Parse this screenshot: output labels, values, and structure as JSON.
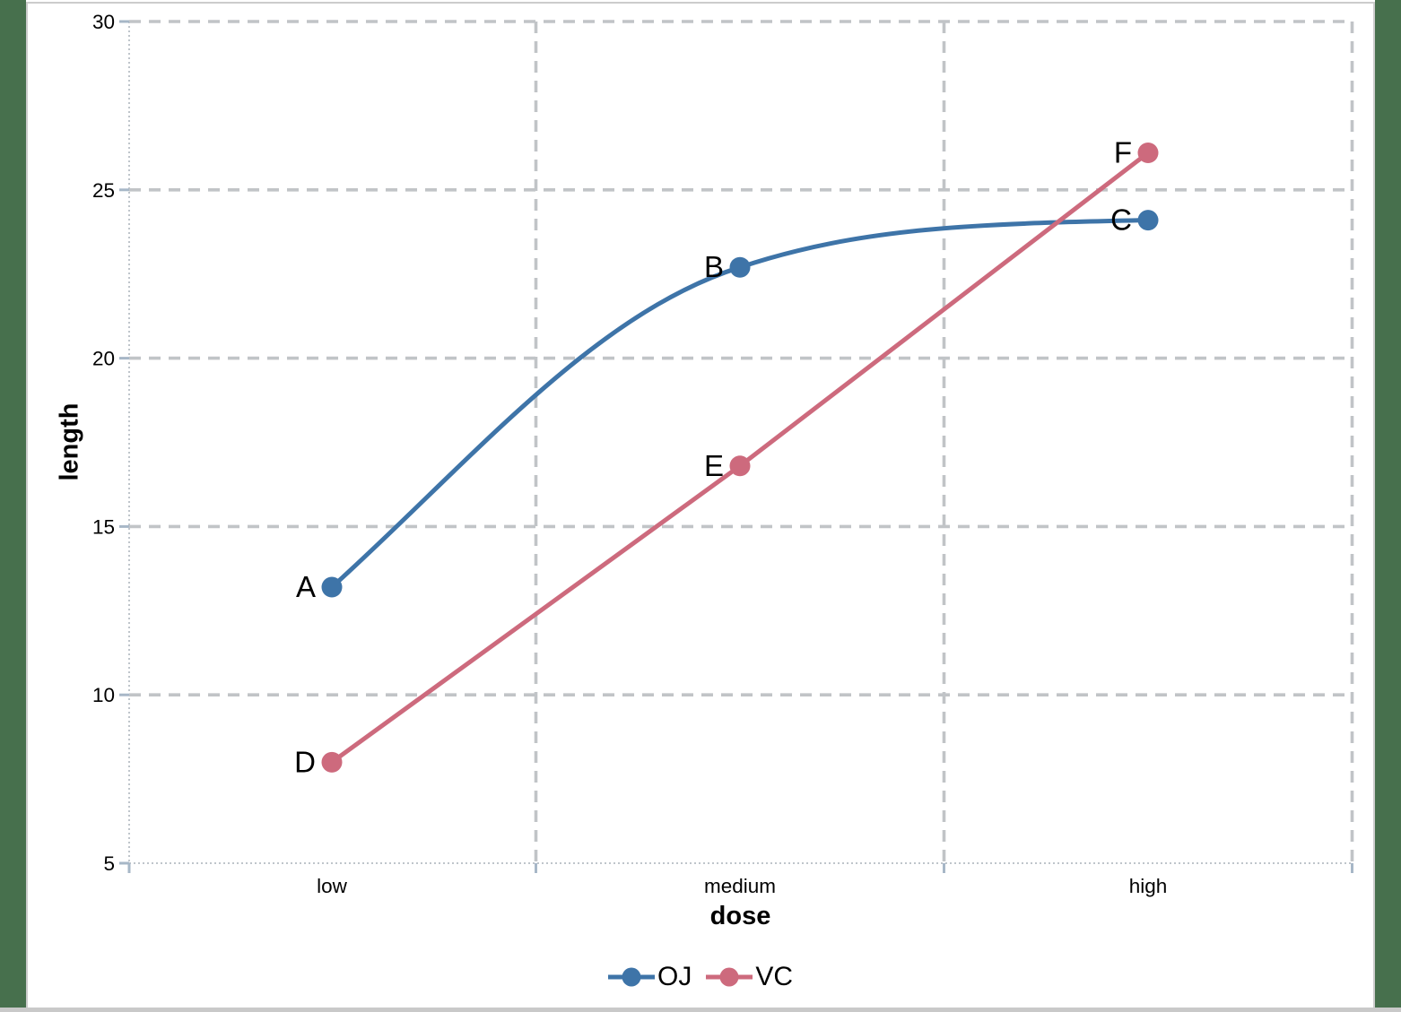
{
  "chart_data": {
    "type": "line",
    "title": "",
    "xlabel": "dose",
    "ylabel": "length",
    "categories": [
      "low",
      "medium",
      "high"
    ],
    "ylim": [
      5,
      30
    ],
    "y_ticks": [
      5,
      10,
      15,
      20,
      25,
      30
    ],
    "grid": "dashed gray horizontal lines at y ticks; dashed gray vertical lines at category boundaries and right edge; dotted axis lines",
    "legend_position": "bottom-center",
    "series": [
      {
        "name": "OJ",
        "color": "#3e74a8",
        "line_style": "smooth",
        "values": [
          13.2,
          22.7,
          24.1
        ],
        "point_labels": [
          "A",
          "B",
          "C"
        ]
      },
      {
        "name": "VC",
        "color": "#cd6a7d",
        "line_style": "straight",
        "values": [
          8.0,
          16.8,
          26.1
        ],
        "point_labels": [
          "D",
          "E",
          "F"
        ]
      }
    ]
  },
  "colors": {
    "gridline": "#c1c4c7",
    "axis_line": "#bfc5cb",
    "tick": "#a7b7c7",
    "text": "#000000",
    "frame_green": "#47704d",
    "frame_silver": "#c9c9c9",
    "canvas": "#ffffff"
  }
}
